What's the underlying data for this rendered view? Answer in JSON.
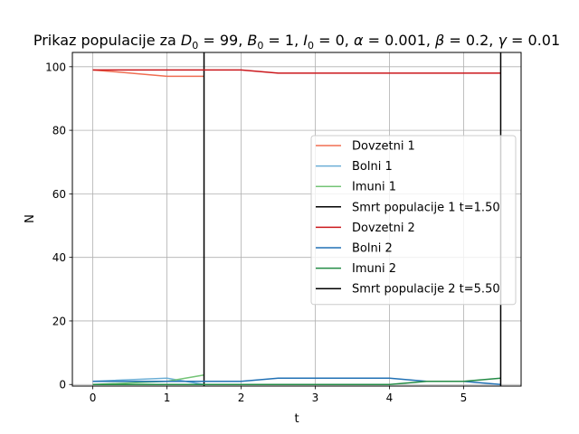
{
  "chart_data": {
    "type": "line",
    "title": "Prikaz populacije za D₀ = 99, B₀ = 1, I₀ = 0, α = 0.001, β = 0.2, γ = 0.01",
    "title_parts": {
      "prefix": "Prikaz populacije za ",
      "D": "D",
      "D_sub": "0",
      "D_val": " = 99, ",
      "B": "B",
      "B_sub": "0",
      "B_val": " = 1, ",
      "I": "I",
      "I_sub": "0",
      "I_val": " = 0, ",
      "alpha": "α",
      "alpha_val": " = 0.001, ",
      "beta": "β",
      "beta_val": " = 0.2, ",
      "gamma": "γ",
      "gamma_val": " = 0.01"
    },
    "xlabel": "t",
    "ylabel": "N",
    "xlim": [
      -0.275,
      5.775
    ],
    "ylim": [
      -0.5,
      104.5
    ],
    "xticks": [
      0,
      1,
      2,
      3,
      4,
      5
    ],
    "yticks": [
      0,
      20,
      40,
      60,
      80,
      100
    ],
    "grid": true,
    "legend_position": "center-right",
    "series": [
      {
        "name": "Dovzetni 1",
        "color": "#f06e52",
        "x": [
          0,
          1,
          1.5
        ],
        "y": [
          99,
          97,
          97
        ]
      },
      {
        "name": "Bolni 1",
        "color": "#6baed6",
        "x": [
          0,
          1,
          1.5
        ],
        "y": [
          1,
          2,
          0
        ]
      },
      {
        "name": "Imuni 1",
        "color": "#74c476",
        "x": [
          0,
          1,
          1.5
        ],
        "y": [
          0,
          1,
          3
        ]
      },
      {
        "name": "Smrt populacije 1 t=1.50",
        "color": "#000000",
        "vline": 1.5
      },
      {
        "name": "Dovzetni 2",
        "color": "#cb181d",
        "x": [
          0,
          0.5,
          1,
          1.5,
          2,
          2.5,
          3,
          3.5,
          4,
          4.5,
          5,
          5.5
        ],
        "y": [
          99,
          99,
          99,
          99,
          99,
          98,
          98,
          98,
          98,
          98,
          98,
          98
        ]
      },
      {
        "name": "Bolni 2",
        "color": "#2171b5",
        "x": [
          0,
          0.5,
          1,
          1.5,
          2,
          2.5,
          3,
          3.5,
          4,
          4.5,
          5,
          5.5
        ],
        "y": [
          1,
          1,
          1,
          1,
          1,
          2,
          2,
          2,
          2,
          1,
          1,
          0
        ]
      },
      {
        "name": "Imuni 2",
        "color": "#238b45",
        "x": [
          0,
          0.5,
          1,
          1.5,
          2,
          2.5,
          3,
          3.5,
          4,
          4.5,
          5,
          5.5
        ],
        "y": [
          0,
          0,
          0,
          0,
          0,
          0,
          0,
          0,
          0,
          1,
          1,
          2
        ]
      },
      {
        "name": "Smrt populacije 2 t=5.50",
        "color": "#000000",
        "vline": 5.5
      }
    ]
  }
}
